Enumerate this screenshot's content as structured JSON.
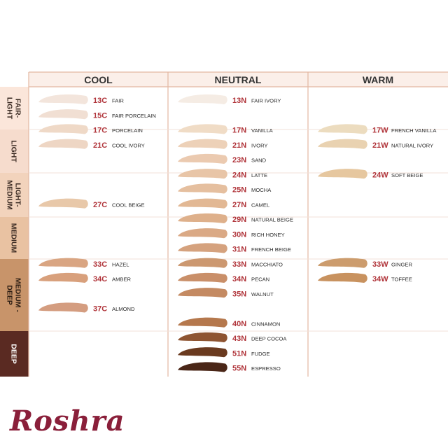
{
  "colors": {
    "code": "#b0343a",
    "name": "#2b2b2b",
    "grid": "#e3b7a2",
    "header_bg": "#fbefe9"
  },
  "columns": [
    "COOL",
    "NEUTRAL",
    "WARM"
  ],
  "bands": [
    {
      "label": "FAIR-\nLIGHT",
      "color": "#fbe6da",
      "text_color": "#3a2a22"
    },
    {
      "label": "LIGHT",
      "color": "#f6dccd",
      "text_color": "#3a2a22"
    },
    {
      "label": "LIGHT-\nMEDIUM",
      "color": "#f2d3bc",
      "text_color": "#3a2a22"
    },
    {
      "label": "MEDIUM",
      "color": "#e9c2a2",
      "text_color": "#3a2a22"
    },
    {
      "label": "MEDIUM -\nDEEP",
      "color": "#c8946a",
      "text_color": "#2b1c12"
    },
    {
      "label": "DEEP",
      "color": "#5a2a22",
      "text_color": "#ffffff"
    }
  ],
  "shades": [
    {
      "code": "13C",
      "name": "FAIR",
      "swatch": "#f3e5dc"
    },
    {
      "code": "15C",
      "name": "FAIR PORCELAIN",
      "swatch": "#f1dfd3"
    },
    {
      "code": "17C",
      "name": "PORCELAIN",
      "swatch": "#efd9c7"
    },
    {
      "code": "21C",
      "name": "COOL IVORY",
      "swatch": "#eed6c4"
    },
    {
      "code": "27C",
      "name": "COOL BEIGE",
      "swatch": "#e8c8a9"
    },
    {
      "code": "33C",
      "name": "HAZEL",
      "swatch": "#d9a582"
    },
    {
      "code": "34C",
      "name": "AMBER",
      "swatch": "#d8a07c"
    },
    {
      "code": "37C",
      "name": "ALMOND",
      "swatch": "#d49d80"
    },
    {
      "code": "13N",
      "name": "FAIR IVORY",
      "swatch": "#f5ece4"
    },
    {
      "code": "17N",
      "name": "VANILLA",
      "swatch": "#f0dcc6"
    },
    {
      "code": "21N",
      "name": "IVORY",
      "swatch": "#edd1b8"
    },
    {
      "code": "23N",
      "name": "SAND",
      "swatch": "#ebcab0"
    },
    {
      "code": "24N",
      "name": "LATTE",
      "swatch": "#e8c5a7"
    },
    {
      "code": "25N",
      "name": "MOCHA",
      "swatch": "#e5bf9f"
    },
    {
      "code": "27N",
      "name": "CAMEL",
      "swatch": "#e2b894"
    },
    {
      "code": "29N",
      "name": "NATURAL BEIGE",
      "swatch": "#deb08b"
    },
    {
      "code": "30N",
      "name": "RICH HONEY",
      "swatch": "#daa985"
    },
    {
      "code": "31N",
      "name": "FRENCH BEIGE",
      "swatch": "#d5a27e"
    },
    {
      "code": "33N",
      "name": "MACCHIATO",
      "swatch": "#cc9870"
    },
    {
      "code": "34N",
      "name": "PECAN",
      "swatch": "#c98f69"
    },
    {
      "code": "35N",
      "name": "WALNUT",
      "swatch": "#c48a62"
    },
    {
      "code": "40N",
      "name": "CINNAMON",
      "swatch": "#b5784d"
    },
    {
      "code": "43N",
      "name": "DEEP COCOA",
      "swatch": "#8e5431"
    },
    {
      "code": "51N",
      "name": "FUDGE",
      "swatch": "#6a3a1f"
    },
    {
      "code": "55N",
      "name": "ESPRESSO",
      "swatch": "#4a2617"
    },
    {
      "code": "17W",
      "name": "FRENCH VANILLA",
      "swatch": "#ecdcbf"
    },
    {
      "code": "21W",
      "name": "NATURAL IVORY",
      "swatch": "#e9d2b1"
    },
    {
      "code": "24W",
      "name": "SOFT BEIGE",
      "swatch": "#e6c79f"
    },
    {
      "code": "33W",
      "name": "GINGER",
      "swatch": "#cc9c6d"
    },
    {
      "code": "34W",
      "name": "TOFFEE",
      "swatch": "#c8925f"
    }
  ],
  "logo_text": "Roshra"
}
